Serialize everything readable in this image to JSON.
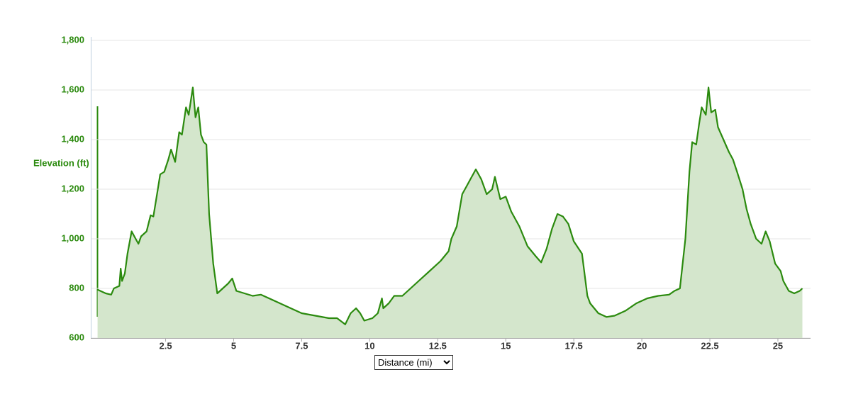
{
  "chart_data": {
    "type": "area",
    "y_label": "Elevation (ft)",
    "x_label": "Distance (mi)",
    "x": [
      0,
      0.3,
      0.5,
      0.6,
      0.8,
      0.85,
      0.9,
      1.0,
      1.1,
      1.25,
      1.4,
      1.5,
      1.6,
      1.8,
      1.95,
      2.05,
      2.2,
      2.3,
      2.45,
      2.6,
      2.7,
      2.85,
      3.0,
      3.1,
      3.25,
      3.35,
      3.5,
      3.6,
      3.7,
      3.8,
      3.9,
      4.0,
      4.1,
      4.25,
      4.4,
      4.6,
      4.8,
      4.95,
      5.1,
      5.4,
      5.7,
      6.0,
      6.3,
      6.6,
      7.0,
      7.5,
      8.0,
      8.5,
      8.8,
      9.1,
      9.3,
      9.5,
      9.65,
      9.8,
      10.1,
      10.3,
      10.45,
      10.5,
      10.7,
      10.9,
      11.2,
      11.5,
      11.8,
      12.2,
      12.6,
      12.9,
      13.0,
      13.2,
      13.4,
      13.55,
      13.7,
      13.9,
      14.1,
      14.3,
      14.5,
      14.6,
      14.8,
      15.0,
      15.2,
      15.5,
      15.8,
      16.1,
      16.3,
      16.5,
      16.7,
      16.9,
      17.1,
      17.3,
      17.5,
      17.8,
      18.0,
      18.1,
      18.4,
      18.7,
      19.0,
      19.4,
      19.8,
      20.2,
      20.6,
      21.0,
      21.2,
      21.4,
      21.6,
      21.75,
      21.85,
      22.0,
      22.1,
      22.2,
      22.35,
      22.45,
      22.55,
      22.7,
      22.8,
      23.0,
      23.2,
      23.35,
      23.5,
      23.7,
      23.85,
      24.0,
      24.2,
      24.4,
      24.55,
      24.7,
      24.9,
      25.1,
      25.2,
      25.4,
      25.6,
      25.8,
      25.9
    ],
    "series": [
      {
        "color": "#2b8a0e",
        "fill": "#d4e6cc",
        "values": [
          795,
          780,
          775,
          800,
          810,
          880,
          830,
          860,
          940,
          1030,
          1000,
          980,
          1010,
          1030,
          1095,
          1090,
          1190,
          1260,
          1270,
          1320,
          1360,
          1310,
          1430,
          1420,
          1530,
          1500,
          1610,
          1490,
          1530,
          1420,
          1390,
          1380,
          1100,
          900,
          780,
          800,
          820,
          840,
          790,
          780,
          770,
          775,
          760,
          745,
          725,
          700,
          690,
          680,
          680,
          655,
          700,
          720,
          700,
          670,
          680,
          700,
          760,
          720,
          740,
          770,
          770,
          800,
          830,
          870,
          910,
          950,
          1000,
          1050,
          1180,
          1210,
          1240,
          1280,
          1240,
          1180,
          1200,
          1250,
          1160,
          1170,
          1110,
          1050,
          970,
          930,
          905,
          960,
          1040,
          1100,
          1090,
          1060,
          990,
          940,
          770,
          740,
          700,
          685,
          690,
          710,
          740,
          760,
          770,
          775,
          790,
          800,
          1000,
          1270,
          1390,
          1380,
          1460,
          1530,
          1500,
          1610,
          1510,
          1520,
          1450,
          1400,
          1350,
          1320,
          1270,
          1200,
          1120,
          1060,
          1000,
          980,
          1030,
          990,
          900,
          870,
          830,
          790,
          780,
          790,
          800
        ]
      }
    ],
    "xlim": [
      -0.25,
      26.2
    ],
    "ylim": [
      600,
      1800
    ],
    "xticks": [
      2.5,
      5,
      7.5,
      10,
      12.5,
      15,
      17.5,
      20,
      22.5,
      25
    ],
    "yticks": [
      {
        "value": 600,
        "label": "600"
      },
      {
        "value": 800,
        "label": "800"
      },
      {
        "value": 1000,
        "label": "1,000"
      },
      {
        "value": 1200,
        "label": "1,200"
      },
      {
        "value": 1400,
        "label": "1,400"
      },
      {
        "value": 1600,
        "label": "1,600"
      },
      {
        "value": 1800,
        "label": "1,800"
      }
    ],
    "grid": true
  }
}
